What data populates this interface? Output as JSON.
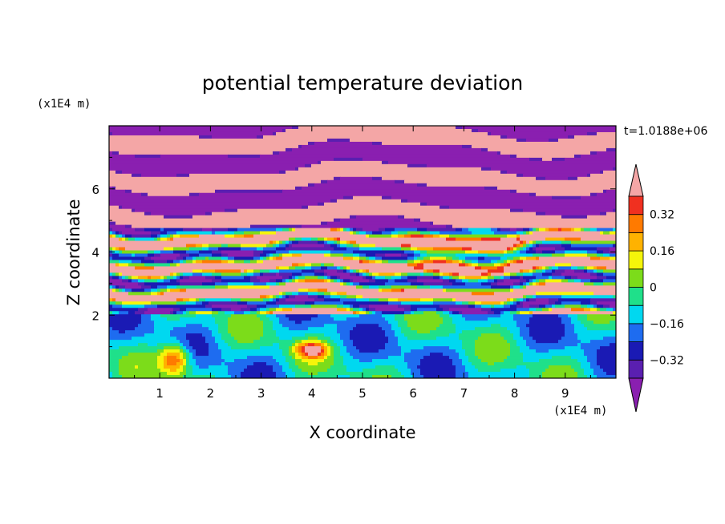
{
  "chart_data": {
    "type": "heatmap",
    "title": "potential temperature deviation",
    "xlabel": "X coordinate",
    "ylabel": "Z coordinate",
    "x_unit": "(x1E4 m)",
    "y_unit": "(x1E4 m)",
    "time_label": "t=1.0188e+06",
    "xlim": [
      0,
      10
    ],
    "ylim": [
      0,
      8
    ],
    "x_ticks": [
      "1",
      "2",
      "3",
      "4",
      "5",
      "6",
      "7",
      "8",
      "9"
    ],
    "y_ticks": [
      "2",
      "4",
      "6"
    ],
    "colorbar": {
      "levels": [
        -0.4,
        -0.32,
        -0.24,
        -0.16,
        -0.08,
        0,
        0.08,
        0.16,
        0.24,
        0.32,
        0.4
      ],
      "tick_labels": [
        "0.32",
        "0.16",
        "0",
        "−0.16",
        "−0.32"
      ],
      "colors": [
        "#8a1fb0",
        "#5a1fb0",
        "#1a1ab4",
        "#1e6cf0",
        "#00d8f0",
        "#1fe08a",
        "#7cdc1a",
        "#f5f50a",
        "#ffb200",
        "#ff7a00",
        "#f03020",
        "#f4a6a6"
      ],
      "extend": "both"
    }
  }
}
